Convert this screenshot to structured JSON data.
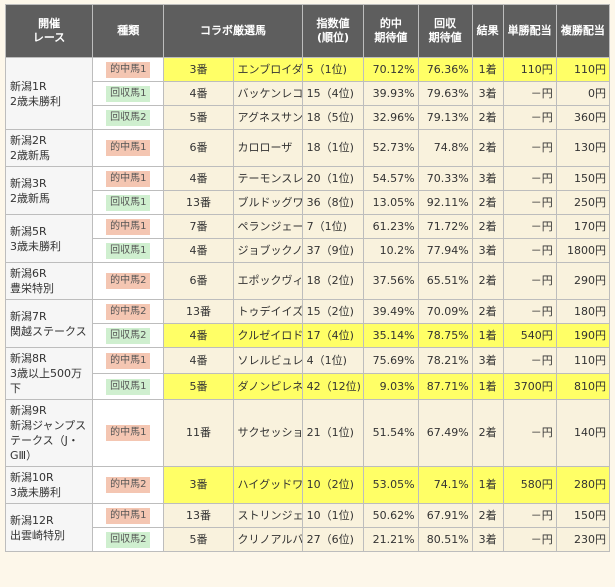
{
  "headers": {
    "race": "開催\nレース",
    "kind": "種類",
    "horse": "コラボ厳選馬",
    "index": "指数値\n(順位)",
    "hit_exp": "的中\n期待値",
    "recov_exp": "回収\n期待値",
    "result": "結果",
    "win_pay": "単勝配当",
    "place_pay": "複勝配当"
  },
  "races": [
    {
      "name": "新潟1R\n2歳未勝利",
      "rows": [
        {
          "kind": "的中馬1",
          "type": "hit",
          "num": "3番",
          "horse": "エンブロイダリー",
          "index": "5（1位)",
          "hit": "70.12%",
          "recov": "76.36%",
          "result": "1着",
          "win": "110円",
          "place": "110円",
          "hl": true
        },
        {
          "kind": "回収馬1",
          "type": "rec",
          "num": "4番",
          "horse": "バッケンレコード",
          "index": "15（4位)",
          "hit": "39.93%",
          "recov": "79.63%",
          "result": "3着",
          "win": "－円",
          "place": "0円",
          "hl": false
        },
        {
          "kind": "回収馬2",
          "type": "rec",
          "num": "5番",
          "horse": "アグネスサンキ",
          "index": "18（5位)",
          "hit": "32.96%",
          "recov": "79.13%",
          "result": "2着",
          "win": "－円",
          "place": "360円",
          "hl": false
        }
      ]
    },
    {
      "name": "新潟2R\n2歳新馬",
      "rows": [
        {
          "kind": "的中馬1",
          "type": "hit",
          "num": "6番",
          "horse": "カロローザ",
          "index": "18（1位)",
          "hit": "52.73%",
          "recov": "74.8%",
          "result": "2着",
          "win": "－円",
          "place": "130円",
          "hl": false
        }
      ]
    },
    {
      "name": "新潟3R\n2歳新馬",
      "rows": [
        {
          "kind": "的中馬1",
          "type": "hit",
          "num": "4番",
          "horse": "テーモンスレイヤー",
          "index": "20（1位)",
          "hit": "54.57%",
          "recov": "70.33%",
          "result": "3着",
          "win": "－円",
          "place": "150円",
          "hl": false
        },
        {
          "kind": "回収馬1",
          "type": "rec",
          "num": "13番",
          "horse": "ブルドッグワイルド",
          "index": "36（8位)",
          "hit": "13.05%",
          "recov": "92.11%",
          "result": "2着",
          "win": "－円",
          "place": "250円",
          "hl": false
        }
      ]
    },
    {
      "name": "新潟5R\n3歳未勝利",
      "rows": [
        {
          "kind": "的中馬1",
          "type": "hit",
          "num": "7番",
          "horse": "ペランジェール",
          "index": "7（1位)",
          "hit": "61.23%",
          "recov": "71.72%",
          "result": "2着",
          "win": "－円",
          "place": "170円",
          "hl": false
        },
        {
          "kind": "回収馬1",
          "type": "rec",
          "num": "4番",
          "horse": "ジョブックノワ",
          "index": "37（9位)",
          "hit": "10.2%",
          "recov": "77.94%",
          "result": "3着",
          "win": "－円",
          "place": "1800円",
          "hl": false
        }
      ]
    },
    {
      "name": "新潟6R\n豊栄特別",
      "rows": [
        {
          "kind": "的中馬2",
          "type": "hit",
          "num": "6番",
          "horse": "エポックヴィーナス",
          "index": "18（2位)",
          "hit": "37.56%",
          "recov": "65.51%",
          "result": "2着",
          "win": "－円",
          "place": "290円",
          "hl": false
        }
      ]
    },
    {
      "name": "新潟7R\n関越ステークス",
      "rows": [
        {
          "kind": "的中馬2",
          "type": "hit",
          "num": "13番",
          "horse": "トゥデイイズザデイ",
          "index": "15（2位)",
          "hit": "39.49%",
          "recov": "70.09%",
          "result": "2着",
          "win": "－円",
          "place": "180円",
          "hl": false
        },
        {
          "kind": "回収馬2",
          "type": "rec",
          "num": "4番",
          "horse": "クルゼイロドスル",
          "index": "17（4位)",
          "hit": "35.14%",
          "recov": "78.75%",
          "result": "1着",
          "win": "540円",
          "place": "190円",
          "hl": true
        }
      ]
    },
    {
      "name": "新潟8R\n3歳以上500万下",
      "rows": [
        {
          "kind": "的中馬1",
          "type": "hit",
          "num": "4番",
          "horse": "ソレルビュレット",
          "index": "4（1位)",
          "hit": "75.69%",
          "recov": "78.21%",
          "result": "3着",
          "win": "－円",
          "place": "110円",
          "hl": false
        },
        {
          "kind": "回収馬1",
          "type": "rec",
          "num": "5番",
          "horse": "ダノンピレネー",
          "index": "42（12位)",
          "hit": "9.03%",
          "recov": "87.71%",
          "result": "1着",
          "win": "3700円",
          "place": "810円",
          "hl": true
        }
      ]
    },
    {
      "name": "新潟9R\n新潟ジャンプステークス（J・GⅢ）",
      "rows": [
        {
          "kind": "的中馬1",
          "type": "hit",
          "num": "11番",
          "horse": "サクセッション",
          "index": "21（1位)",
          "hit": "51.54%",
          "recov": "67.49%",
          "result": "2着",
          "win": "－円",
          "place": "140円",
          "hl": false
        }
      ]
    },
    {
      "name": "新潟10R\n3歳未勝利",
      "rows": [
        {
          "kind": "的中馬2",
          "type": "hit",
          "num": "3番",
          "horse": "ハイグッドワールド",
          "index": "10（2位)",
          "hit": "53.05%",
          "recov": "74.1%",
          "result": "1着",
          "win": "580円",
          "place": "280円",
          "hl": true
        }
      ]
    },
    {
      "name": "新潟12R\n出雲崎特別",
      "rows": [
        {
          "kind": "的中馬1",
          "type": "hit",
          "num": "13番",
          "horse": "ストリンジェンド",
          "index": "10（1位)",
          "hit": "50.62%",
          "recov": "67.91%",
          "result": "2着",
          "win": "－円",
          "place": "150円",
          "hl": false
        },
        {
          "kind": "回収馬2",
          "type": "rec",
          "num": "5番",
          "horse": "クリノアルバトロス",
          "index": "27（6位)",
          "hit": "21.21%",
          "recov": "80.51%",
          "result": "3着",
          "win": "－円",
          "place": "230円",
          "hl": false
        }
      ]
    }
  ],
  "colors": {
    "header_bg": "#5e5e5e",
    "highlight": "#ffff66",
    "hit_badge": "#f4c6b2",
    "rec_badge": "#cfefcf",
    "row_bg": "#f9f2dd"
  }
}
